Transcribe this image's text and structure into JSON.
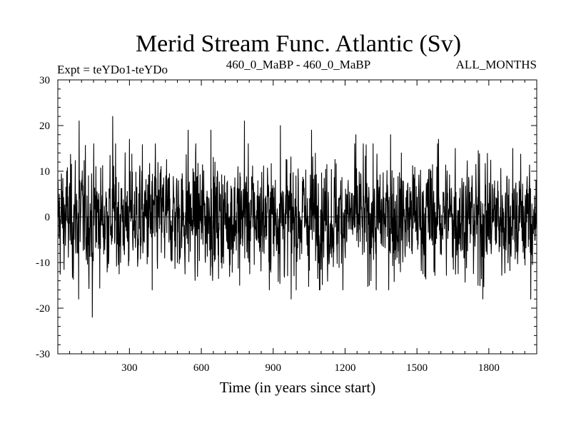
{
  "chart_data": {
    "type": "line",
    "title": "Merid Stream Func. Atlantic (Sv)",
    "subtitle_left": "Expt = teYDo1-teYDo",
    "subtitle_center": "460_0_MaBP - 460_0_MaBP",
    "subtitle_right": "ALL_MONTHS",
    "xlabel": "Time (in years since start)",
    "ylabel": "",
    "xlim": [
      1,
      2000
    ],
    "ylim": [
      -30,
      30
    ],
    "xticks": [
      300,
      600,
      900,
      1200,
      1500,
      1800
    ],
    "yticks": [
      30,
      20,
      10,
      0,
      -10,
      -20,
      -30
    ],
    "series": [
      {
        "name": "Merid Stream Func. Atlantic",
        "color": "#000000",
        "n_points": 2000,
        "mean": 0,
        "typical_range": [
          -12,
          12
        ],
        "extremes": [
          {
            "x": 90,
            "y": 18
          },
          {
            "x": 88,
            "y": -18
          },
          {
            "x": 90,
            "y": 21
          },
          {
            "x": 160,
            "y": 11
          },
          {
            "x": 145,
            "y": -22
          },
          {
            "x": 230,
            "y": 22
          },
          {
            "x": 300,
            "y": 17
          },
          {
            "x": 395,
            "y": -16
          },
          {
            "x": 545,
            "y": -20
          },
          {
            "x": 545,
            "y": 19
          },
          {
            "x": 640,
            "y": 19
          },
          {
            "x": 760,
            "y": -15
          },
          {
            "x": 780,
            "y": 21
          },
          {
            "x": 930,
            "y": 20
          },
          {
            "x": 975,
            "y": -18
          },
          {
            "x": 1060,
            "y": 19
          },
          {
            "x": 1245,
            "y": 18
          },
          {
            "x": 1330,
            "y": -16
          },
          {
            "x": 1390,
            "y": 18
          },
          {
            "x": 1590,
            "y": 17
          },
          {
            "x": 1660,
            "y": 15
          },
          {
            "x": 1755,
            "y": -15
          },
          {
            "x": 1775,
            "y": -18
          },
          {
            "x": 1900,
            "y": 15
          },
          {
            "x": 1975,
            "y": -18
          }
        ]
      }
    ]
  }
}
